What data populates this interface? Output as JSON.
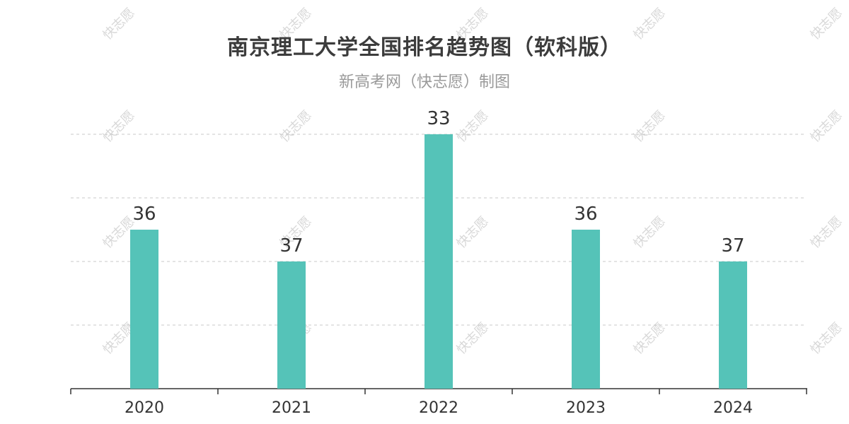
{
  "watermark_text": "快志愿",
  "chart_data": {
    "type": "bar",
    "title": "南京理工大学全国排名趋势图（软科版）",
    "subtitle": "新高考网（快志愿）制图",
    "categories": [
      "2020",
      "2021",
      "2022",
      "2023",
      "2024"
    ],
    "values": [
      36,
      37,
      33,
      36,
      37
    ],
    "axis": "inverted rank (smaller rank = taller bar)",
    "ylim": [
      41,
      33
    ],
    "grid": true,
    "colors": {
      "bar": "#55c3b8",
      "grid": "#c8c8c8",
      "axis": "#333333"
    }
  }
}
